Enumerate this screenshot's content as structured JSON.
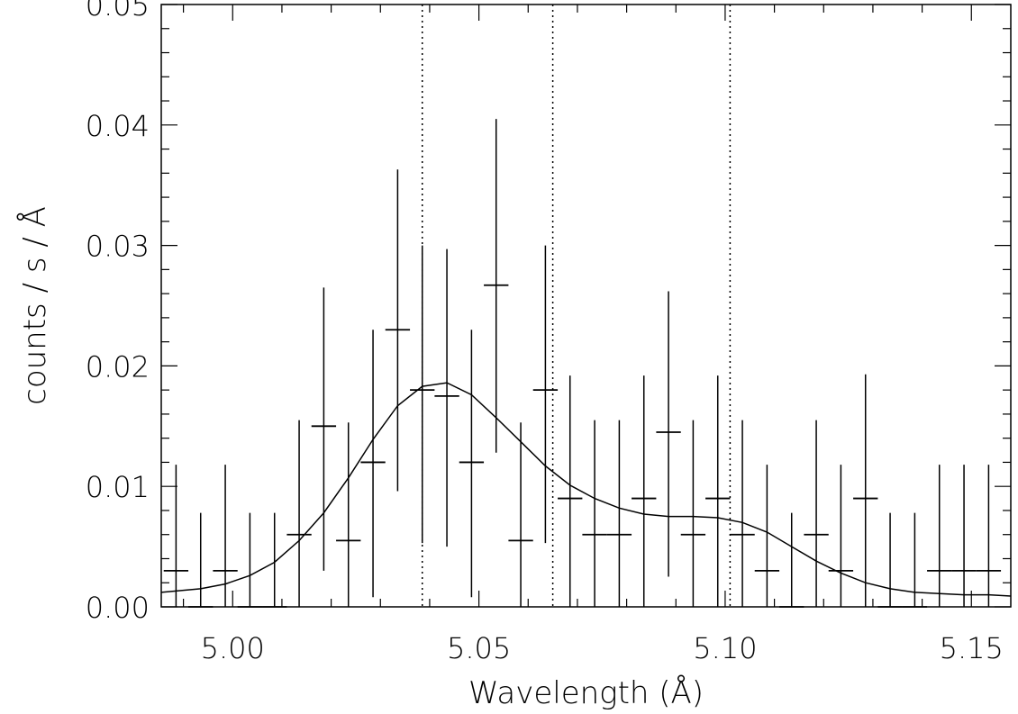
{
  "chart_data": {
    "type": "scatter",
    "title": "",
    "xlabel": "Wavelength (Å)",
    "ylabel": "counts / s / Å",
    "xlim": [
      4.9855,
      5.158
    ],
    "ylim": [
      0.0,
      0.05
    ],
    "xticks": [
      5.0,
      5.05,
      5.1,
      5.15
    ],
    "xtick_labels": [
      "5.00",
      "5.05",
      "5.10",
      "5.15"
    ],
    "yticks": [
      0.0,
      0.01,
      0.02,
      0.03,
      0.04,
      0.05
    ],
    "ytick_labels": [
      "0.00",
      "0.01",
      "0.02",
      "0.03",
      "0.04",
      "0.05"
    ],
    "grid": false,
    "vlines": [
      5.0385,
      5.065,
      5.101
    ],
    "data_points": [
      {
        "x": 4.9885,
        "y": 0.003,
        "ylo": 0.0,
        "yhi": 0.0118
      },
      {
        "x": 4.9935,
        "y": 0.0,
        "ylo": 0.0,
        "yhi": 0.0078
      },
      {
        "x": 4.9985,
        "y": 0.003,
        "ylo": 0.0,
        "yhi": 0.0118
      },
      {
        "x": 5.0035,
        "y": 0.0,
        "ylo": 0.0,
        "yhi": 0.0078
      },
      {
        "x": 5.0085,
        "y": 0.0,
        "ylo": 0.0,
        "yhi": 0.0078
      },
      {
        "x": 5.0135,
        "y": 0.006,
        "ylo": 0.0,
        "yhi": 0.0155
      },
      {
        "x": 5.0185,
        "y": 0.015,
        "ylo": 0.003,
        "yhi": 0.0265
      },
      {
        "x": 5.0235,
        "y": 0.0055,
        "ylo": 0.0,
        "yhi": 0.0153
      },
      {
        "x": 5.0285,
        "y": 0.012,
        "ylo": 0.0008,
        "yhi": 0.023
      },
      {
        "x": 5.0335,
        "y": 0.023,
        "ylo": 0.0096,
        "yhi": 0.0363
      },
      {
        "x": 5.0385,
        "y": 0.018,
        "ylo": 0.0053,
        "yhi": 0.03
      },
      {
        "x": 5.0435,
        "y": 0.0175,
        "ylo": 0.005,
        "yhi": 0.0297
      },
      {
        "x": 5.0485,
        "y": 0.012,
        "ylo": 0.0008,
        "yhi": 0.023
      },
      {
        "x": 5.0535,
        "y": 0.0267,
        "ylo": 0.0128,
        "yhi": 0.0405
      },
      {
        "x": 5.0585,
        "y": 0.0055,
        "ylo": 0.0,
        "yhi": 0.0153
      },
      {
        "x": 5.0635,
        "y": 0.018,
        "ylo": 0.0053,
        "yhi": 0.03
      },
      {
        "x": 5.0685,
        "y": 0.009,
        "ylo": 0.0,
        "yhi": 0.0192
      },
      {
        "x": 5.0735,
        "y": 0.006,
        "ylo": 0.0,
        "yhi": 0.0155
      },
      {
        "x": 5.0785,
        "y": 0.006,
        "ylo": 0.0,
        "yhi": 0.0155
      },
      {
        "x": 5.0835,
        "y": 0.009,
        "ylo": 0.0,
        "yhi": 0.0192
      },
      {
        "x": 5.0885,
        "y": 0.0145,
        "ylo": 0.0025,
        "yhi": 0.0262
      },
      {
        "x": 5.0935,
        "y": 0.006,
        "ylo": 0.0,
        "yhi": 0.0155
      },
      {
        "x": 5.0985,
        "y": 0.009,
        "ylo": 0.0,
        "yhi": 0.0192
      },
      {
        "x": 5.1035,
        "y": 0.006,
        "ylo": 0.0,
        "yhi": 0.0155
      },
      {
        "x": 5.1085,
        "y": 0.003,
        "ylo": 0.0,
        "yhi": 0.0118
      },
      {
        "x": 5.1135,
        "y": 0.0,
        "ylo": 0.0,
        "yhi": 0.0078
      },
      {
        "x": 5.1185,
        "y": 0.006,
        "ylo": 0.0,
        "yhi": 0.0155
      },
      {
        "x": 5.1235,
        "y": 0.003,
        "ylo": 0.0,
        "yhi": 0.0118
      },
      {
        "x": 5.1285,
        "y": 0.009,
        "ylo": 0.0,
        "yhi": 0.0193
      },
      {
        "x": 5.1335,
        "y": 0.0,
        "ylo": 0.0,
        "yhi": 0.0078
      },
      {
        "x": 5.1385,
        "y": 0.0,
        "ylo": 0.0,
        "yhi": 0.0078
      },
      {
        "x": 5.1435,
        "y": 0.003,
        "ylo": 0.0,
        "yhi": 0.0118
      },
      {
        "x": 5.1485,
        "y": 0.003,
        "ylo": 0.0,
        "yhi": 0.0118
      },
      {
        "x": 5.1535,
        "y": 0.003,
        "ylo": 0.0,
        "yhi": 0.0118
      }
    ],
    "x_bin_halfwidth": 0.0025,
    "model_curve": [
      {
        "x": 4.9855,
        "y": 0.0012
      },
      {
        "x": 4.9935,
        "y": 0.0015
      },
      {
        "x": 4.9985,
        "y": 0.0019
      },
      {
        "x": 5.0035,
        "y": 0.0026
      },
      {
        "x": 5.0085,
        "y": 0.0037
      },
      {
        "x": 5.0135,
        "y": 0.0055
      },
      {
        "x": 5.0185,
        "y": 0.0078
      },
      {
        "x": 5.0235,
        "y": 0.0107
      },
      {
        "x": 5.0285,
        "y": 0.0139
      },
      {
        "x": 5.0335,
        "y": 0.0167
      },
      {
        "x": 5.0385,
        "y": 0.0183
      },
      {
        "x": 5.0435,
        "y": 0.0186
      },
      {
        "x": 5.0485,
        "y": 0.0176
      },
      {
        "x": 5.0535,
        "y": 0.0157
      },
      {
        "x": 5.0585,
        "y": 0.0137
      },
      {
        "x": 5.0635,
        "y": 0.0117
      },
      {
        "x": 5.0685,
        "y": 0.0101
      },
      {
        "x": 5.0735,
        "y": 0.009
      },
      {
        "x": 5.0785,
        "y": 0.0082
      },
      {
        "x": 5.0835,
        "y": 0.0077
      },
      {
        "x": 5.0885,
        "y": 0.0075
      },
      {
        "x": 5.0935,
        "y": 0.0075
      },
      {
        "x": 5.0985,
        "y": 0.0074
      },
      {
        "x": 5.1035,
        "y": 0.007
      },
      {
        "x": 5.1085,
        "y": 0.0062
      },
      {
        "x": 5.1135,
        "y": 0.005
      },
      {
        "x": 5.1185,
        "y": 0.0038
      },
      {
        "x": 5.1235,
        "y": 0.0028
      },
      {
        "x": 5.1285,
        "y": 0.002
      },
      {
        "x": 5.1335,
        "y": 0.0015
      },
      {
        "x": 5.1385,
        "y": 0.0012
      },
      {
        "x": 5.1435,
        "y": 0.0011
      },
      {
        "x": 5.1485,
        "y": 0.001
      },
      {
        "x": 5.1535,
        "y": 0.001
      },
      {
        "x": 5.158,
        "y": 0.0009
      }
    ]
  }
}
